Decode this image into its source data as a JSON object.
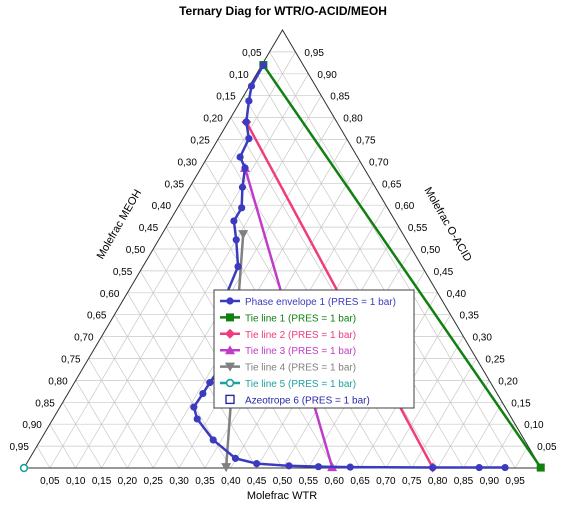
{
  "chart_data": {
    "type": "ternary",
    "title": "Ternary Diag for WTR/O-ACID/MEOH",
    "axes": {
      "bottom": {
        "label": "Molefrac WTR",
        "component": "WTR"
      },
      "right": {
        "label": "Molefrac O-ACID",
        "component": "O-ACID"
      },
      "left": {
        "label": "Molefrac MEOH",
        "component": "MEOH"
      }
    },
    "tick_labels": [
      "0,05",
      "0,10",
      "0,15",
      "0,20",
      "0,25",
      "0,30",
      "0,35",
      "0,40",
      "0,45",
      "0,50",
      "0,55",
      "0,60",
      "0,65",
      "0,70",
      "0,75",
      "0,80",
      "0,85",
      "0,90",
      "0,95"
    ],
    "tick_values": [
      0.05,
      0.1,
      0.15,
      0.2,
      0.25,
      0.3,
      0.35,
      0.4,
      0.45,
      0.5,
      0.55,
      0.6,
      0.65,
      0.7,
      0.75,
      0.8,
      0.85,
      0.9,
      0.95
    ],
    "grid": true,
    "legend_position": "center-right",
    "series": [
      {
        "name": "Phase envelope 1 (PRES = 1  bar)",
        "color": "#3b3bbf",
        "marker": "circle",
        "points": [
          {
            "wtr": 0.003,
            "acid": 0.92
          },
          {
            "wtr": 0.004,
            "acid": 0.872
          },
          {
            "wtr": 0.016,
            "acid": 0.838
          },
          {
            "wtr": 0.035,
            "acid": 0.79
          },
          {
            "wtr": 0.059,
            "acid": 0.752
          },
          {
            "wtr": 0.063,
            "acid": 0.71
          },
          {
            "wtr": 0.085,
            "acid": 0.685
          },
          {
            "wtr": 0.102,
            "acid": 0.641
          },
          {
            "wtr": 0.124,
            "acid": 0.594
          },
          {
            "wtr": 0.124,
            "acid": 0.564
          },
          {
            "wtr": 0.15,
            "acid": 0.521
          },
          {
            "wtr": 0.184,
            "acid": 0.46
          },
          {
            "wtr": 0.194,
            "acid": 0.392
          },
          {
            "wtr": 0.225,
            "acid": 0.327
          },
          {
            "wtr": 0.234,
            "acid": 0.309
          },
          {
            "wtr": 0.265,
            "acid": 0.23
          },
          {
            "wtr": 0.262,
            "acid": 0.195
          },
          {
            "wtr": 0.261,
            "acid": 0.17
          },
          {
            "wtr": 0.259,
            "acid": 0.139
          },
          {
            "wtr": 0.279,
            "acid": 0.112
          },
          {
            "wtr": 0.334,
            "acid": 0.064
          },
          {
            "wtr": 0.398,
            "acid": 0.022
          },
          {
            "wtr": 0.445,
            "acid": 0.01
          },
          {
            "wtr": 0.51,
            "acid": 0.005
          },
          {
            "wtr": 0.568,
            "acid": 0.003
          },
          {
            "wtr": 0.63,
            "acid": 0.002
          },
          {
            "wtr": 0.79,
            "acid": 0.001
          },
          {
            "wtr": 0.88,
            "acid": 0.001
          },
          {
            "wtr": 0.93,
            "acid": 0.001
          }
        ]
      },
      {
        "name": "Tie line 1 (PRES = 1  bar)",
        "color": "#108010",
        "marker": "square",
        "points": [
          {
            "wtr": 0.003,
            "acid": 0.92
          },
          {
            "wtr": 0.999,
            "acid": 0.001
          }
        ]
      },
      {
        "name": "Tie line 2 (PRES = 1  bar)",
        "color": "#f03c7d",
        "marker": "diamond",
        "points": [
          {
            "wtr": 0.035,
            "acid": 0.79
          },
          {
            "wtr": 0.79,
            "acid": 0.001
          }
        ]
      },
      {
        "name": "Tie line 3 (PRES = 1  bar)",
        "color": "#c03cc8",
        "marker": "triangle",
        "points": [
          {
            "wtr": 0.085,
            "acid": 0.685
          },
          {
            "wtr": 0.595,
            "acid": 0.002
          }
        ]
      },
      {
        "name": "Tie line 4 (PRES = 1  bar)",
        "color": "#808080",
        "marker": "triangle-down",
        "points": [
          {
            "wtr": 0.157,
            "acid": 0.534
          },
          {
            "wtr": 0.39,
            "acid": 0.002
          }
        ]
      },
      {
        "name": "Tie line 5 (PRES = 1  bar)",
        "color": "#20a0a0",
        "marker": "open-circle",
        "points": [
          {
            "wtr": 0.0,
            "acid": 0.0
          }
        ]
      },
      {
        "name": "Azeotrope 6 (PRES = 1  bar)",
        "color": "#2828a8",
        "marker": "open-square",
        "points": []
      }
    ]
  }
}
